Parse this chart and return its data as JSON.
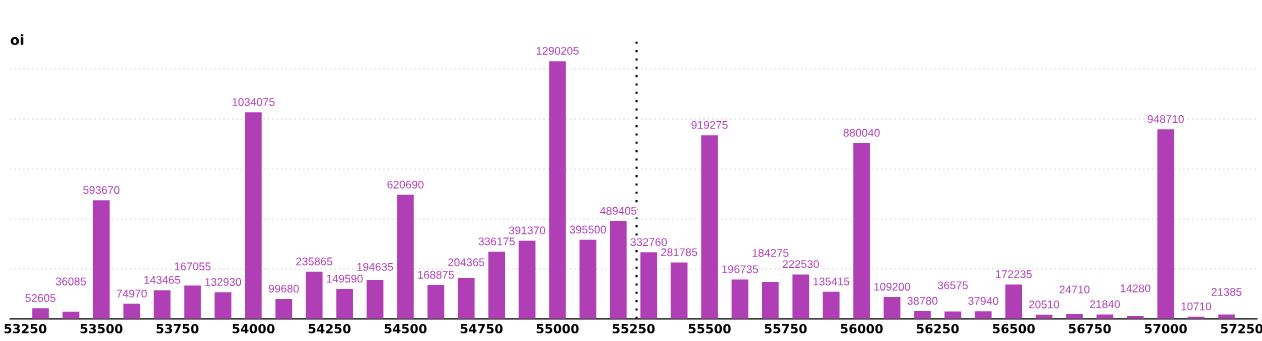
{
  "chart_data": {
    "type": "bar",
    "title": "oi",
    "x": [
      53300,
      53400,
      53500,
      53600,
      53700,
      53800,
      53900,
      54000,
      54100,
      54200,
      54300,
      54400,
      54500,
      54600,
      54700,
      54800,
      54900,
      55000,
      55100,
      55200,
      55300,
      55400,
      55500,
      55600,
      55700,
      55800,
      55900,
      56000,
      56100,
      56200,
      56300,
      56400,
      56500,
      56600,
      56700,
      56800,
      56900,
      57000,
      57100,
      57200
    ],
    "values": [
      52605,
      36085,
      593670,
      74970,
      143465,
      167055,
      132930,
      1034075,
      99680,
      235865,
      149590,
      194635,
      620690,
      168875,
      204365,
      336175,
      391370,
      1290205,
      395500,
      489405,
      332760,
      281785,
      919275,
      196735,
      184275,
      222530,
      135415,
      880040,
      109200,
      38780,
      36575,
      37940,
      172235,
      20510,
      24710,
      21840,
      14280,
      948710,
      10710,
      21385
    ],
    "color": "#b03fb5",
    "data_labels": true,
    "xlim": [
      53200,
      57300
    ],
    "xticks": [
      53250,
      53500,
      53750,
      54000,
      54250,
      54500,
      54750,
      55000,
      55250,
      55500,
      55750,
      56000,
      56250,
      56500,
      56750,
      57000,
      57250
    ],
    "ylim": [
      0,
      1400000
    ],
    "yticks": [
      {
        "value": 250000,
        "label": null
      },
      {
        "value": 500000,
        "label": null
      },
      {
        "value": 750000,
        "label": null
      },
      {
        "value": 1000000,
        "label": null
      },
      {
        "value": 1250000,
        "label": null
      }
    ],
    "grid": "y",
    "tick_labels": "x",
    "ref_lines": [
      {
        "axis": "x",
        "value": 55260,
        "color": "#000000",
        "line_style": "dotted"
      }
    ]
  }
}
